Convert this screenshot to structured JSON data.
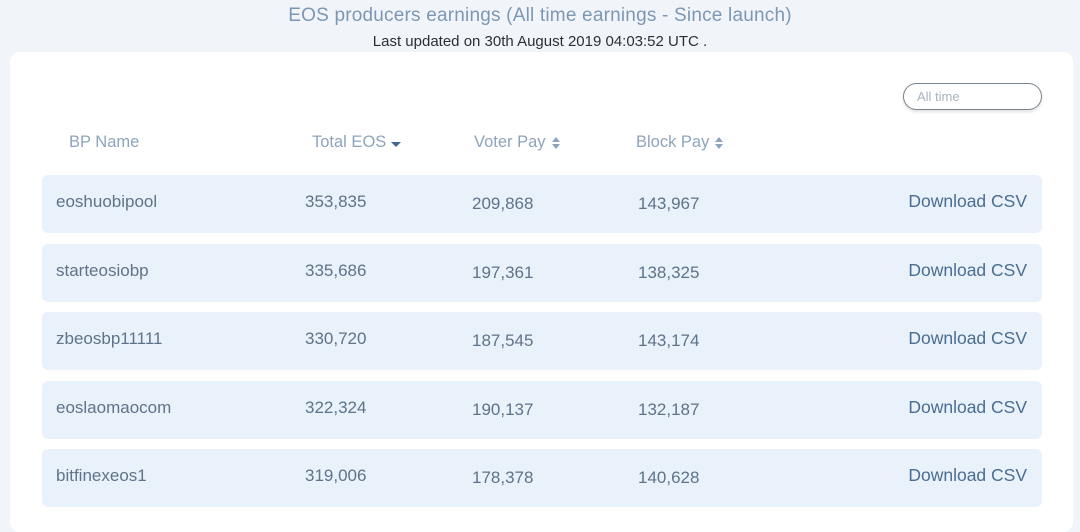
{
  "header": {
    "title": "EOS producers earnings (All time earnings - Since launch)",
    "subtitle": "Last updated on 30th August 2019 04:03:52 UTC ."
  },
  "filter": {
    "period_value": "All time"
  },
  "table": {
    "columns": [
      {
        "label": "BP Name",
        "icon": "none"
      },
      {
        "label": "Total EOS",
        "icon": "sort-desc-icon"
      },
      {
        "label": "Voter Pay",
        "icon": "sort-icon"
      },
      {
        "label": "Block Pay",
        "icon": "sort-icon"
      }
    ],
    "rows": [
      {
        "name": "eoshuobipool",
        "total": "353,835",
        "voter": "209,868",
        "block": "143,967",
        "action": "Download CSV"
      },
      {
        "name": "starteosiobp",
        "total": "335,686",
        "voter": "197,361",
        "block": "138,325",
        "action": "Download CSV"
      },
      {
        "name": "zbeosbp11111",
        "total": "330,720",
        "voter": "187,545",
        "block": "143,174",
        "action": "Download CSV"
      },
      {
        "name": "eoslaomaocom",
        "total": "322,324",
        "voter": "190,137",
        "block": "132,187",
        "action": "Download CSV"
      },
      {
        "name": "bitfinexeos1",
        "total": "319,006",
        "voter": "178,378",
        "block": "140,628",
        "action": "Download CSV"
      }
    ]
  },
  "colors": {
    "background": "#f1f5fa",
    "card": "#ffffff",
    "row": "#e9f1fb",
    "title": "#7c97b4",
    "link": "#4a6d92"
  }
}
